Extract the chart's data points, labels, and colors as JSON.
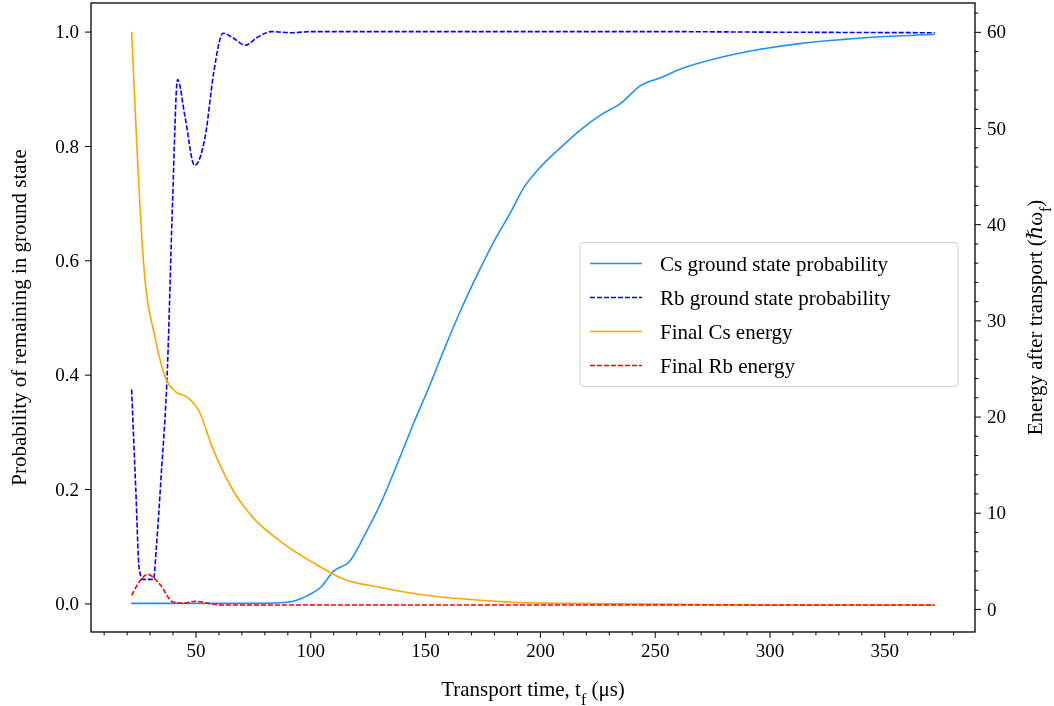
{
  "chart_data": {
    "type": "line",
    "xlabel": "Transport time, t$_{f}$ (μs)",
    "ylabel": "Probability of remaining in ground state",
    "y2label": "Energy after transport (ℏω$_{f}$)",
    "xlim": [
      4.5,
      389.5
    ],
    "xticks": [
      {
        "value": 10,
        "label": null
      },
      {
        "value": 20,
        "label": null
      },
      {
        "value": 30,
        "label": null
      },
      {
        "value": 40,
        "label": null
      },
      50,
      {
        "value": 60,
        "label": null
      },
      {
        "value": 70,
        "label": null
      },
      {
        "value": 80,
        "label": null
      },
      {
        "value": 90,
        "label": null
      },
      100,
      {
        "value": 110,
        "label": null
      },
      {
        "value": 120,
        "label": null
      },
      {
        "value": 130,
        "label": null
      },
      {
        "value": 140,
        "label": null
      },
      150,
      {
        "value": 160,
        "label": null
      },
      {
        "value": 170,
        "label": null
      },
      {
        "value": 180,
        "label": null
      },
      {
        "value": 190,
        "label": null
      },
      200,
      {
        "value": 210,
        "label": null
      },
      {
        "value": 220,
        "label": null
      },
      {
        "value": 230,
        "label": null
      },
      {
        "value": 240,
        "label": null
      },
      250,
      {
        "value": 260,
        "label": null
      },
      {
        "value": 270,
        "label": null
      },
      {
        "value": 280,
        "label": null
      },
      {
        "value": 290,
        "label": null
      },
      300,
      {
        "value": 310,
        "label": null
      },
      {
        "value": 320,
        "label": null
      },
      {
        "value": 330,
        "label": null
      },
      {
        "value": 340,
        "label": null
      },
      350,
      {
        "value": 360,
        "label": null
      },
      {
        "value": 370,
        "label": null
      },
      {
        "value": 380,
        "label": null
      }
    ],
    "ylim": [
      -0.05,
      1.05
    ],
    "yticks": [
      {
        "value": 0,
        "label": "0.0"
      },
      0.2,
      0.4,
      0.6,
      0.8,
      {
        "value": 1,
        "label": "1.0"
      }
    ],
    "y2lim": [
      -2.4,
      63
    ],
    "y2ticks": [
      0,
      {
        "value": 2,
        "label": null
      },
      {
        "value": 4,
        "label": null
      },
      {
        "value": 6,
        "label": null
      },
      {
        "value": 8,
        "label": null
      },
      10,
      {
        "value": 12,
        "label": null
      },
      {
        "value": 14,
        "label": null
      },
      {
        "value": 16,
        "label": null
      },
      {
        "value": 18,
        "label": null
      },
      20,
      {
        "value": 22,
        "label": null
      },
      {
        "value": 24,
        "label": null
      },
      {
        "value": 26,
        "label": null
      },
      {
        "value": 28,
        "label": null
      },
      30,
      {
        "value": 32,
        "label": null
      },
      {
        "value": 34,
        "label": null
      },
      {
        "value": 36,
        "label": null
      },
      {
        "value": 38,
        "label": null
      },
      40,
      {
        "value": 42,
        "label": null
      },
      {
        "value": 44,
        "label": null
      },
      {
        "value": 46,
        "label": null
      },
      {
        "value": 48,
        "label": null
      },
      50,
      {
        "value": 52,
        "label": null
      },
      {
        "value": 54,
        "label": null
      },
      {
        "value": 56,
        "label": null
      },
      {
        "value": 58,
        "label": null
      },
      60,
      {
        "value": 62,
        "label": null
      }
    ],
    "grid": false,
    "legend": "right",
    "series": [
      {
        "name": "Cs ground state probability",
        "color": "#1e90ff",
        "line_style": "solid",
        "x": [
          22,
          40,
          60,
          80,
          90,
          99,
          105,
          110,
          117,
          124,
          131,
          138,
          145,
          152,
          159,
          166,
          173,
          180,
          187,
          193,
          200,
          209,
          218,
          226,
          235,
          244,
          253,
          261,
          279,
          296,
          313,
          331,
          348,
          372
        ],
        "values": [
          0,
          0,
          0,
          0,
          0.002,
          0.014,
          0.03,
          0.056,
          0.073,
          0.122,
          0.178,
          0.245,
          0.315,
          0.381,
          0.451,
          0.517,
          0.577,
          0.633,
          0.682,
          0.727,
          0.762,
          0.797,
          0.829,
          0.853,
          0.874,
          0.906,
          0.92,
          0.934,
          0.955,
          0.969,
          0.979,
          0.986,
          0.991,
          0.995
        ]
      },
      {
        "name": "Rb ground state probability",
        "color": "#0000ff",
        "line_style": "dashed",
        "x": [
          22.2,
          24,
          25.5,
          27,
          29,
          31.7,
          33,
          35,
          37.8,
          40,
          42.2,
          45.5,
          49.6,
          54.3,
          58,
          62,
          66,
          71.7,
          77,
          83,
          91.7,
          100.5,
          150,
          200,
          250,
          300,
          372
        ],
        "values": [
          0.374,
          0.2,
          0.06,
          0.042,
          0.042,
          0.042,
          0.1,
          0.22,
          0.413,
          0.7,
          0.916,
          0.85,
          0.766,
          0.818,
          0.93,
          0.997,
          0.99,
          0.976,
          0.99,
          1.0,
          0.998,
          1.0,
          1.0,
          1.0,
          1.0,
          0.999,
          0.998
        ]
      },
      {
        "name": "Final Cs energy",
        "color": "#ffa500",
        "line_style": "solid",
        "axis": "y2",
        "x": [
          22.2,
          24.5,
          27.4,
          32.6,
          37,
          41.3,
          46.5,
          51.7,
          57,
          65.7,
          74.3,
          88.3,
          102,
          113.5,
          131,
          148,
          174,
          200,
          250,
          300,
          372
        ],
        "values": [
          60,
          48,
          36,
          28,
          24,
          22.6,
          22,
          20.5,
          17,
          12.6,
          9.7,
          6.8,
          4.7,
          3.2,
          2.2,
          1.5,
          0.9,
          0.6,
          0.5,
          0.4,
          0.4
        ]
      },
      {
        "name": "Final Rb energy",
        "color": "#ff0000",
        "line_style": "dashed",
        "axis": "y2",
        "x": [
          22.2,
          25.5,
          29.1,
          34.3,
          40.4,
          45,
          50,
          55,
          62,
          100,
          200,
          300,
          372
        ],
        "values": [
          1.4,
          2.8,
          3.6,
          2.6,
          0.7,
          0.6,
          0.8,
          0.6,
          0.4,
          0.4,
          0.4,
          0.4,
          0.4
        ]
      }
    ]
  }
}
